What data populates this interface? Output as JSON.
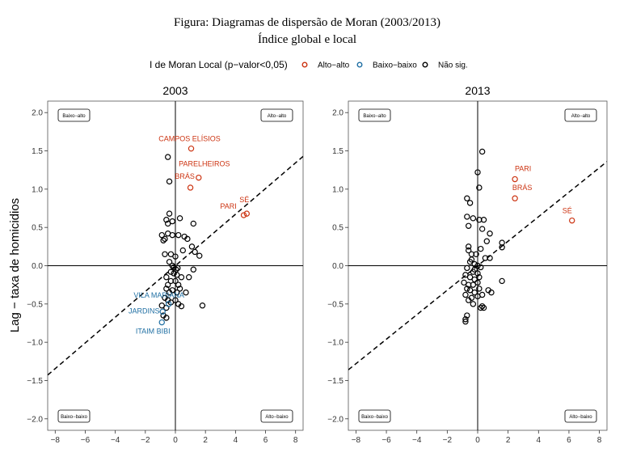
{
  "figure": {
    "title": "Figura: Diagramas de dispersão de Moran (2003/2013)",
    "subtitle": "Índice global e local"
  },
  "legend": {
    "title": "I de Moran Local (p−valor<0,05)",
    "items": [
      {
        "label": "Alto−alto",
        "color": "#cc3311"
      },
      {
        "label": "Baixo−baixo",
        "color": "#1f6fa3"
      },
      {
        "label": "Não sig.",
        "color": "#000000"
      }
    ],
    "placement": "top"
  },
  "ylabel": "Lag − taxa de homicidios",
  "quadrant_labels": {
    "top_left": "Baixo−alto",
    "top_right": "Alto−alto",
    "bottom_left": "Baixo−baixo",
    "bottom_right": "Alto−baixo"
  },
  "chart_data": [
    {
      "type": "scatter",
      "title": "2003",
      "xlim": [
        -8.5,
        8.5
      ],
      "ylim": [
        -2.15,
        2.15
      ],
      "xticks": [
        -8,
        -6,
        -4,
        -2,
        0,
        2,
        4,
        6,
        8
      ],
      "yticks": [
        -2.0,
        -1.5,
        -1.0,
        -0.5,
        0.0,
        0.5,
        1.0,
        1.5,
        2.0
      ],
      "regression_slope": 0.168,
      "highlighted": [
        {
          "x": 1.05,
          "y": 1.53,
          "category": "Alto-alto",
          "label": "CAMPOS ELÍSIOS"
        },
        {
          "x": 1.55,
          "y": 1.15,
          "category": "Alto-alto",
          "label": "PARELHEIROS"
        },
        {
          "x": 1.0,
          "y": 1.02,
          "category": "Alto-alto",
          "label": "BRÁS"
        },
        {
          "x": 4.75,
          "y": 0.68,
          "category": "Alto-alto",
          "label": "SÉ"
        },
        {
          "x": 4.55,
          "y": 0.66,
          "category": "Alto-alto",
          "label": "PARI"
        },
        {
          "x": -0.45,
          "y": -0.5,
          "category": "Baixo-baixo",
          "label": "VILA MARIANA"
        },
        {
          "x": -0.85,
          "y": -0.6,
          "category": "Baixo-baixo",
          "label": "JARDINS"
        },
        {
          "x": -0.9,
          "y": -0.74,
          "category": "Baixo-baixo",
          "label": "ITAIM BIBI"
        }
      ],
      "points": [
        [
          -0.5,
          1.42
        ],
        [
          -0.4,
          1.1
        ],
        [
          -0.6,
          0.6
        ],
        [
          -0.4,
          0.68
        ],
        [
          -0.2,
          0.58
        ],
        [
          0.3,
          0.62
        ],
        [
          -0.5,
          0.55
        ],
        [
          -0.9,
          0.4
        ],
        [
          -0.7,
          0.35
        ],
        [
          -0.5,
          0.42
        ],
        [
          -0.2,
          0.4
        ],
        [
          0.2,
          0.4
        ],
        [
          0.6,
          0.38
        ],
        [
          0.8,
          0.35
        ],
        [
          -0.8,
          0.33
        ],
        [
          1.2,
          0.55
        ],
        [
          1.1,
          0.25
        ],
        [
          1.3,
          0.18
        ],
        [
          1.6,
          0.13
        ],
        [
          0.5,
          0.2
        ],
        [
          0.0,
          0.12
        ],
        [
          -0.3,
          0.15
        ],
        [
          -0.7,
          0.15
        ],
        [
          -0.4,
          0.05
        ],
        [
          -0.2,
          0.0
        ],
        [
          -0.1,
          -0.02
        ],
        [
          0.05,
          -0.05
        ],
        [
          0.15,
          -0.03
        ],
        [
          -0.3,
          -0.08
        ],
        [
          -0.6,
          -0.15
        ],
        [
          -0.3,
          -0.2
        ],
        [
          0.0,
          -0.2
        ],
        [
          0.2,
          -0.25
        ],
        [
          0.9,
          -0.15
        ],
        [
          1.2,
          -0.05
        ],
        [
          -0.6,
          -0.3
        ],
        [
          -0.4,
          -0.35
        ],
        [
          -0.2,
          -0.32
        ],
        [
          0.1,
          -0.35
        ],
        [
          0.3,
          -0.3
        ],
        [
          0.7,
          -0.35
        ],
        [
          -0.7,
          -0.42
        ],
        [
          -0.5,
          -0.45
        ],
        [
          -0.3,
          -0.48
        ],
        [
          0.0,
          -0.45
        ],
        [
          0.2,
          -0.5
        ],
        [
          0.4,
          -0.53
        ],
        [
          1.8,
          -0.52
        ],
        [
          -0.9,
          -0.52
        ],
        [
          -0.6,
          -0.55
        ],
        [
          -0.8,
          -0.65
        ],
        [
          -0.6,
          -0.68
        ],
        [
          -0.1,
          -0.1
        ],
        [
          0.1,
          -0.12
        ],
        [
          -0.5,
          -0.25
        ],
        [
          0.4,
          -0.15
        ]
      ]
    },
    {
      "type": "scatter",
      "title": "2013",
      "xlim": [
        -8.5,
        8.5
      ],
      "ylim": [
        -2.15,
        2.15
      ],
      "xticks": [
        -8,
        -6,
        -4,
        -2,
        0,
        2,
        4,
        6,
        8
      ],
      "yticks": [
        -2.0,
        -1.5,
        -1.0,
        -0.5,
        0.0,
        0.5,
        1.0,
        1.5,
        2.0
      ],
      "regression_slope": 0.16,
      "highlighted": [
        {
          "x": 2.45,
          "y": 1.13,
          "category": "Alto-alto",
          "label": "PARI"
        },
        {
          "x": 2.45,
          "y": 0.88,
          "category": "Alto-alto",
          "label": "BRÁS"
        },
        {
          "x": 6.2,
          "y": 0.59,
          "category": "Alto-alto",
          "label": "SÉ"
        }
      ],
      "points": [
        [
          0.3,
          1.49
        ],
        [
          0.0,
          1.22
        ],
        [
          0.1,
          1.02
        ],
        [
          -0.7,
          0.88
        ],
        [
          -0.5,
          0.82
        ],
        [
          -0.7,
          0.64
        ],
        [
          -0.3,
          0.62
        ],
        [
          0.1,
          0.6
        ],
        [
          -0.6,
          0.52
        ],
        [
          0.4,
          0.6
        ],
        [
          0.3,
          0.48
        ],
        [
          0.8,
          0.42
        ],
        [
          0.6,
          0.32
        ],
        [
          1.6,
          0.3
        ],
        [
          1.6,
          0.24
        ],
        [
          -0.6,
          0.25
        ],
        [
          -0.6,
          0.2
        ],
        [
          -0.4,
          0.15
        ],
        [
          -0.1,
          0.15
        ],
        [
          0.2,
          0.22
        ],
        [
          0.5,
          0.1
        ],
        [
          0.8,
          0.1
        ],
        [
          -0.5,
          0.05
        ],
        [
          -0.2,
          0.02
        ],
        [
          0.0,
          0.0
        ],
        [
          0.2,
          -0.02
        ],
        [
          -0.7,
          -0.03
        ],
        [
          -0.3,
          -0.08
        ],
        [
          0.0,
          -0.1
        ],
        [
          -0.8,
          -0.12
        ],
        [
          -0.5,
          -0.15
        ],
        [
          -0.2,
          -0.18
        ],
        [
          0.1,
          -0.15
        ],
        [
          -0.9,
          -0.22
        ],
        [
          -0.6,
          -0.25
        ],
        [
          -0.3,
          -0.25
        ],
        [
          0.0,
          -0.22
        ],
        [
          1.6,
          -0.2
        ],
        [
          -0.7,
          -0.3
        ],
        [
          -0.5,
          -0.32
        ],
        [
          -0.2,
          -0.35
        ],
        [
          0.7,
          -0.32
        ],
        [
          0.9,
          -0.35
        ],
        [
          -0.8,
          -0.38
        ],
        [
          -0.4,
          -0.42
        ],
        [
          0.0,
          -0.4
        ],
        [
          0.3,
          -0.38
        ],
        [
          -0.6,
          -0.45
        ],
        [
          -0.3,
          -0.5
        ],
        [
          0.3,
          -0.53
        ],
        [
          0.4,
          -0.55
        ],
        [
          -0.7,
          -0.65
        ],
        [
          -0.8,
          -0.7
        ],
        [
          -0.8,
          -0.73
        ],
        [
          0.2,
          -0.55
        ],
        [
          -0.2,
          -0.05
        ],
        [
          0.1,
          -0.3
        ],
        [
          -0.4,
          0.08
        ]
      ]
    }
  ]
}
